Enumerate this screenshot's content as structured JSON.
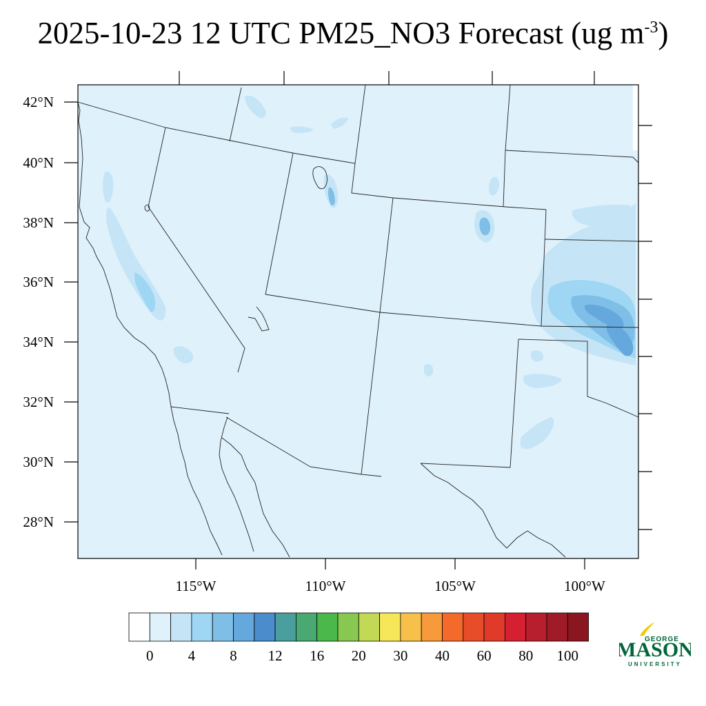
{
  "title": {
    "main": "2025-10-23 12 UTC PM25_NO3 Forecast (ug m",
    "superscript": "-3",
    "close": ")"
  },
  "map": {
    "lat_labels": [
      "42°N",
      "40°N",
      "38°N",
      "36°N",
      "34°N",
      "32°N",
      "30°N",
      "28°N"
    ],
    "lon_labels": [
      "115°W",
      "110°W",
      "105°W",
      "100°W"
    ],
    "background_color": "#dff1fb",
    "field_colors": [
      "#c5e5f7",
      "#9fd6f4",
      "#7fbee6",
      "#5fa6dc"
    ]
  },
  "colorbar": {
    "colors": [
      "#ffffff",
      "#dff1fb",
      "#c5e5f7",
      "#9fd6f4",
      "#7fbee6",
      "#65a8dd",
      "#4a8ccc",
      "#4a9e9e",
      "#4aa873",
      "#4ab84a",
      "#88c850",
      "#c2d955",
      "#f6e65a",
      "#f6c04a",
      "#f69a3c",
      "#f36a2a",
      "#e84d2a",
      "#e03a2a",
      "#d42030",
      "#b81f2e",
      "#a01b28",
      "#8a1620"
    ],
    "labels": [
      "0",
      "4",
      "8",
      "12",
      "16",
      "20",
      "30",
      "40",
      "60",
      "80",
      "100"
    ]
  },
  "logo": {
    "line1": "GEORGE",
    "line2": "MASON",
    "line3": "UNIVERSITY",
    "color": "#00663a",
    "accent": "#f6c700"
  }
}
